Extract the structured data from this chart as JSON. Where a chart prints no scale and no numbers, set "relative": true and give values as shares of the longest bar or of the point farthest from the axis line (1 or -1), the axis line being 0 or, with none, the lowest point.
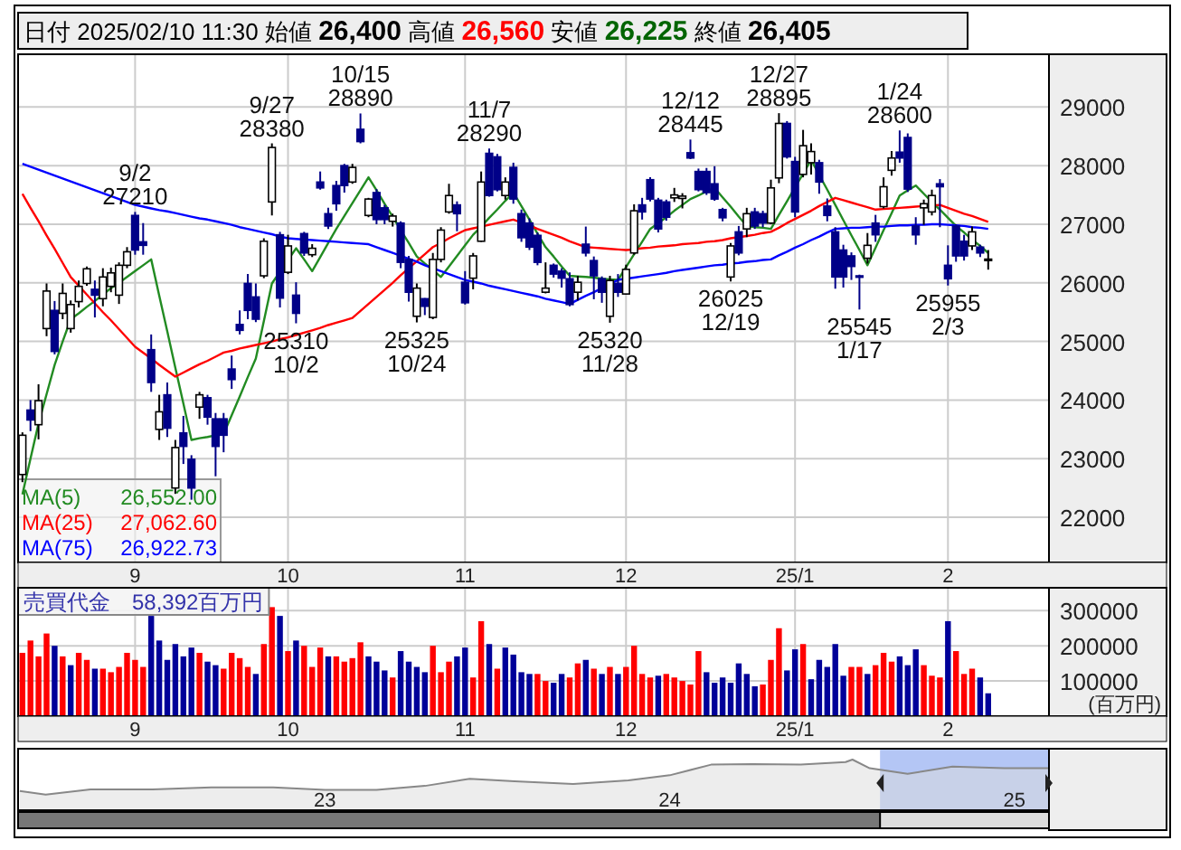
{
  "chart_data": [
    {
      "type": "candlestick",
      "title": "日付 2025/02/10 11:30 始値 26,400 高値 26,560 安値 26,225 終値 26,405",
      "grid": true,
      "legend": "bottom left",
      "categories": [
        null,
        null,
        null,
        null,
        null,
        null,
        null,
        null,
        null,
        null,
        null,
        null,
        null,
        null,
        "9",
        null,
        null,
        null,
        null,
        null,
        null,
        null,
        null,
        null,
        null,
        null,
        null,
        null,
        null,
        null,
        null,
        null,
        null,
        "10",
        null,
        null,
        null,
        null,
        null,
        null,
        null,
        null,
        null,
        null,
        null,
        null,
        null,
        null,
        null,
        null,
        null,
        null,
        null,
        null,
        null,
        "11",
        null,
        null,
        null,
        null,
        null,
        null,
        null,
        null,
        null,
        null,
        null,
        null,
        null,
        null,
        null,
        null,
        null,
        null,
        null,
        "12",
        null,
        null,
        null,
        null,
        null,
        null,
        null,
        null,
        null,
        null,
        null,
        null,
        null,
        null,
        null,
        null,
        null,
        null,
        null,
        null,
        "25/1",
        null,
        null,
        null,
        null,
        null,
        null,
        null,
        null,
        null,
        null,
        null,
        null,
        null,
        null,
        null,
        null,
        null,
        null,
        "2",
        null,
        null,
        null,
        null,
        null
      ],
      "ylim": [
        21230,
        29900
      ],
      "yticks": [
        22000,
        23000,
        24000,
        25000,
        26000,
        27000,
        28000,
        29000
      ],
      "ohlc": [
        [
          22730,
          23450,
          22600,
          23400
        ],
        [
          23830,
          24000,
          23470,
          23660
        ],
        [
          23580,
          24270,
          23330,
          23990
        ],
        [
          25220,
          25990,
          25090,
          25860
        ],
        [
          25530,
          25690,
          24780,
          24830
        ],
        [
          25480,
          25990,
          25380,
          25820
        ],
        [
          25220,
          25700,
          25150,
          25630
        ],
        [
          25680,
          26040,
          25580,
          25940
        ],
        [
          25990,
          26280,
          25950,
          26240
        ],
        [
          25890,
          26040,
          25410,
          25790
        ],
        [
          25730,
          26250,
          25600,
          26100
        ],
        [
          25940,
          26260,
          25840,
          26170
        ],
        [
          25790,
          26350,
          25640,
          26300
        ],
        [
          26300,
          26610,
          26250,
          26530
        ],
        [
          27150,
          27210,
          26480,
          26560
        ],
        [
          26700,
          27020,
          26480,
          26640
        ],
        [
          24860,
          25120,
          24140,
          24300
        ],
        [
          23500,
          24090,
          23320,
          23800
        ],
        [
          24090,
          24300,
          23370,
          23520
        ],
        [
          22500,
          23320,
          22400,
          23190
        ],
        [
          23440,
          23730,
          22910,
          23210
        ],
        [
          22990,
          23060,
          22300,
          22500
        ],
        [
          23880,
          24140,
          23680,
          24090
        ],
        [
          24040,
          24090,
          23580,
          23710
        ],
        [
          23680,
          23780,
          22700,
          23210
        ],
        [
          23680,
          23780,
          23110,
          23400
        ],
        [
          24530,
          24760,
          24190,
          24350
        ],
        [
          25290,
          25530,
          25120,
          25190
        ],
        [
          25990,
          26150,
          25380,
          25530
        ],
        [
          25760,
          25990,
          25330,
          25380
        ],
        [
          26120,
          26760,
          26080,
          26710
        ],
        [
          27380,
          28380,
          27150,
          28310
        ],
        [
          26820,
          26870,
          25580,
          25740
        ],
        [
          26180,
          26820,
          26150,
          26630
        ],
        [
          25790,
          26010,
          25310,
          25480
        ],
        [
          26840,
          26870,
          26460,
          26510
        ],
        [
          26480,
          26660,
          26440,
          26590
        ],
        [
          27720,
          27900,
          27590,
          27620
        ],
        [
          27180,
          27280,
          26920,
          26970
        ],
        [
          27660,
          27740,
          27230,
          27350
        ],
        [
          28000,
          28030,
          27540,
          27660
        ],
        [
          27720,
          28030,
          27690,
          27970
        ],
        [
          28620,
          28890,
          28380,
          28410
        ],
        [
          27150,
          27450,
          27120,
          27430
        ],
        [
          27540,
          27600,
          27000,
          27080
        ],
        [
          27280,
          27330,
          27000,
          27080
        ],
        [
          27050,
          27180,
          26960,
          27140
        ],
        [
          27020,
          27050,
          26250,
          26350
        ],
        [
          26400,
          26460,
          25680,
          25840
        ],
        [
          25430,
          25990,
          25325,
          25910
        ],
        [
          25730,
          25740,
          25450,
          25600
        ],
        [
          25410,
          26510,
          25380,
          26400
        ],
        [
          26400,
          26950,
          26350,
          26900
        ],
        [
          27210,
          27690,
          27180,
          27490
        ],
        [
          27330,
          27390,
          26880,
          27180
        ],
        [
          26010,
          26200,
          25630,
          25660
        ],
        [
          26080,
          26510,
          25890,
          26460
        ],
        [
          26710,
          27900,
          26700,
          27720
        ],
        [
          28210,
          28290,
          27470,
          27490
        ],
        [
          28150,
          28200,
          27560,
          27590
        ],
        [
          27490,
          27800,
          27420,
          27720
        ],
        [
          27970,
          28050,
          27350,
          27430
        ],
        [
          27180,
          27250,
          26700,
          26770
        ],
        [
          27020,
          27100,
          26560,
          26610
        ],
        [
          26810,
          26860,
          26300,
          26350
        ],
        [
          25840,
          26350,
          25820,
          25910
        ],
        [
          26300,
          26330,
          26090,
          26150
        ],
        [
          26200,
          26250,
          25920,
          26080
        ],
        [
          26070,
          26180,
          25600,
          25630
        ],
        [
          25840,
          26120,
          25700,
          26010
        ],
        [
          26660,
          26960,
          26450,
          26510
        ],
        [
          26380,
          26450,
          25720,
          26120
        ],
        [
          26070,
          26110,
          25660,
          25840
        ],
        [
          25430,
          26120,
          25320,
          26040
        ],
        [
          25990,
          26150,
          25760,
          25840
        ],
        [
          25810,
          26310,
          25800,
          26230
        ],
        [
          26510,
          27340,
          26480,
          27230
        ],
        [
          27330,
          27450,
          27080,
          27210
        ],
        [
          27760,
          27800,
          27390,
          27430
        ],
        [
          27410,
          27450,
          26860,
          26920
        ],
        [
          27380,
          27420,
          27060,
          27120
        ],
        [
          27450,
          27620,
          27380,
          27500
        ],
        [
          27440,
          27530,
          27270,
          27480
        ],
        [
          28220,
          28445,
          28110,
          28130
        ],
        [
          27900,
          27950,
          27560,
          27590
        ],
        [
          27900,
          27960,
          27500,
          27540
        ],
        [
          27690,
          27990,
          27400,
          27430
        ],
        [
          27250,
          27280,
          27050,
          27110
        ],
        [
          26100,
          26680,
          26025,
          26630
        ],
        [
          26870,
          26970,
          26470,
          26510
        ],
        [
          26920,
          27280,
          26780,
          27180
        ],
        [
          27210,
          27280,
          26920,
          26970
        ],
        [
          27180,
          27230,
          26950,
          27020
        ],
        [
          27020,
          27760,
          27000,
          27620
        ],
        [
          27790,
          28895,
          27700,
          28720
        ],
        [
          28720,
          28760,
          28120,
          28150
        ],
        [
          28070,
          28150,
          27120,
          27210
        ],
        [
          27850,
          28610,
          27800,
          28340
        ],
        [
          28050,
          28380,
          27850,
          28240
        ],
        [
          28050,
          28100,
          27520,
          27720
        ],
        [
          27310,
          27440,
          27050,
          27150
        ],
        [
          26870,
          26950,
          25900,
          26100
        ],
        [
          26560,
          26650,
          25920,
          26100
        ],
        [
          26460,
          26520,
          26050,
          26280
        ],
        [
          26120,
          26140,
          25545,
          26100
        ],
        [
          26420,
          26850,
          26330,
          26640
        ],
        [
          27020,
          27160,
          26700,
          26820
        ],
        [
          27300,
          27800,
          27270,
          27640
        ],
        [
          27920,
          28250,
          27830,
          28130
        ],
        [
          28230,
          28600,
          28050,
          28130
        ],
        [
          28480,
          28550,
          27550,
          27600
        ],
        [
          26970,
          27120,
          26650,
          26820
        ],
        [
          27280,
          27420,
          26990,
          27350
        ],
        [
          27210,
          27590,
          27150,
          27490
        ],
        [
          27690,
          27770,
          26950,
          27640
        ],
        [
          26300,
          26640,
          25955,
          26070
        ],
        [
          26970,
          27000,
          26360,
          26460
        ],
        [
          26710,
          26820,
          26380,
          26460
        ],
        [
          26630,
          26960,
          26560,
          26870
        ],
        [
          26610,
          26650,
          26440,
          26510
        ],
        [
          26400,
          26560,
          26225,
          26405
        ]
      ],
      "series": [
        {
          "name": "MA(5)",
          "type": "line",
          "color": "#228b22",
          "values": [
            22390,
            23000,
            23600,
            24100,
            24600,
            25000,
            25380,
            25480,
            25590,
            25690,
            25800,
            25910,
            26000,
            26100,
            26200,
            26300,
            26400,
            25780,
            25170,
            24550,
            23940,
            23320,
            23350,
            23370,
            23400,
            23420,
            23740,
            24060,
            24390,
            24710,
            25350,
            25990,
            26190,
            26390,
            26590,
            26400,
            26200,
            26440,
            26680,
            26920,
            27140,
            27360,
            27580,
            27800,
            27580,
            27350,
            27130,
            26900,
            26680,
            26450,
            26330,
            26220,
            26100,
            26280,
            26460,
            26640,
            26820,
            26960,
            27110,
            27250,
            27400,
            27540,
            27310,
            27080,
            26840,
            26610,
            26450,
            26280,
            26120,
            26110,
            26100,
            26090,
            26070,
            26060,
            26050,
            26270,
            26490,
            26700,
            26920,
            27020,
            27120,
            27230,
            27330,
            27430,
            27490,
            27560,
            27620,
            27460,
            27300,
            27130,
            26970,
            26950,
            26940,
            26920,
            27160,
            27390,
            27630,
            27860,
            28100,
            27840,
            27590,
            27330,
            27070,
            26810,
            26560,
            26300,
            26600,
            26900,
            27190,
            27490,
            27580,
            27660,
            27520,
            27380,
            27250,
            27110,
            26970,
            26860,
            26740,
            26630,
            26510
          ]
        },
        {
          "name": "MA(25)",
          "type": "line",
          "color": "#ff0000",
          "values": [
            27520,
            27280,
            27050,
            26810,
            26580,
            26340,
            26100,
            25950,
            25800,
            25650,
            25500,
            25360,
            25210,
            25060,
            24910,
            24810,
            24710,
            24600,
            24500,
            24400,
            24470,
            24540,
            24610,
            24670,
            24740,
            24810,
            24840,
            24880,
            24910,
            24940,
            24970,
            25000,
            25040,
            25070,
            25110,
            25150,
            25190,
            25230,
            25280,
            25320,
            25360,
            25400,
            25520,
            25640,
            25760,
            25880,
            26000,
            26130,
            26250,
            26370,
            26490,
            26610,
            26680,
            26760,
            26830,
            26900,
            26930,
            26960,
            26990,
            27020,
            27050,
            27080,
            27030,
            26980,
            26920,
            26870,
            26820,
            26770,
            26710,
            26660,
            26610,
            26600,
            26590,
            26580,
            26570,
            26560,
            26570,
            26590,
            26600,
            26620,
            26630,
            26640,
            26660,
            26670,
            26680,
            26700,
            26710,
            26730,
            26760,
            26780,
            26800,
            26820,
            26850,
            26870,
            26940,
            27020,
            27090,
            27160,
            27230,
            27310,
            27380,
            27450,
            27410,
            27370,
            27330,
            27290,
            27250,
            27260,
            27270,
            27280,
            27290,
            27300,
            27310,
            27320,
            27330,
            27280,
            27230,
            27180,
            27140,
            27090,
            27040
          ]
        },
        {
          "name": "MA(75)",
          "type": "line",
          "color": "#0000ff",
          "values": [
            28030,
            27980,
            27930,
            27880,
            27830,
            27780,
            27730,
            27680,
            27630,
            27580,
            27530,
            27480,
            27430,
            27380,
            27330,
            27300,
            27270,
            27240,
            27220,
            27190,
            27160,
            27130,
            27100,
            27080,
            27050,
            27020,
            26990,
            26950,
            26920,
            26890,
            26860,
            26830,
            26790,
            26760,
            26750,
            26740,
            26730,
            26720,
            26710,
            26700,
            26690,
            26680,
            26670,
            26660,
            26610,
            26560,
            26510,
            26460,
            26410,
            26360,
            26300,
            26250,
            26200,
            26150,
            26100,
            26050,
            26020,
            25990,
            25950,
            25920,
            25890,
            25860,
            25830,
            25800,
            25770,
            25730,
            25700,
            25670,
            25640,
            25710,
            25780,
            25840,
            25910,
            25980,
            26050,
            26070,
            26090,
            26110,
            26130,
            26150,
            26170,
            26200,
            26220,
            26240,
            26260,
            26280,
            26300,
            26310,
            26330,
            26340,
            26360,
            26370,
            26390,
            26400,
            26470,
            26530,
            26600,
            26660,
            26730,
            26790,
            26860,
            26920,
            26930,
            26940,
            26940,
            26950,
            26960,
            26960,
            26970,
            26980,
            26980,
            26990,
            26990,
            27000,
            27000,
            26990,
            26980,
            26970,
            26950,
            26940,
            26920
          ]
        }
      ],
      "annotations": [
        "26,552.00",
        "27,062.60",
        "26,922.73",
        {
          "text": "9/2\n27210",
          "y": 27210
        },
        {
          "text": "9/27\n28380",
          "y": 28380
        },
        {
          "text": "25310\n10/2",
          "y": 25310
        },
        {
          "text": "10/15\n28890",
          "y": 28890
        },
        {
          "text": "25325\n10/24",
          "y": 25325
        },
        {
          "text": "11/7\n28290",
          "y": 28290
        },
        {
          "text": "25320\n11/28",
          "y": 25320
        },
        {
          "text": "12/12\n28445",
          "y": 28445
        },
        {
          "text": "26025\n12/19",
          "y": 26025
        },
        {
          "text": "12/27\n28895",
          "y": 28895
        },
        {
          "text": "25545\n1/17",
          "y": 25545
        },
        {
          "text": "1/24\n28600",
          "y": 28600
        },
        {
          "text": "25955\n2/3",
          "y": 25955
        }
      ]
    },
    {
      "type": "bar",
      "title": "売買代金　58,392百万円",
      "ylabel": "(百万円)",
      "grid": true,
      "categories": [
        null,
        null,
        null,
        null,
        null,
        null,
        null,
        null,
        null,
        null,
        null,
        null,
        null,
        null,
        "9",
        null,
        null,
        null,
        null,
        null,
        null,
        null,
        null,
        null,
        null,
        null,
        null,
        null,
        null,
        null,
        null,
        null,
        null,
        "10",
        null,
        null,
        null,
        null,
        null,
        null,
        null,
        null,
        null,
        null,
        null,
        null,
        null,
        null,
        null,
        null,
        null,
        null,
        null,
        null,
        null,
        "11",
        null,
        null,
        null,
        null,
        null,
        null,
        null,
        null,
        null,
        null,
        null,
        null,
        null,
        null,
        null,
        null,
        null,
        null,
        null,
        "12",
        null,
        null,
        null,
        null,
        null,
        null,
        null,
        null,
        null,
        null,
        null,
        null,
        null,
        null,
        null,
        null,
        null,
        null,
        null,
        null,
        "25/1",
        null,
        null,
        null,
        null,
        null,
        null,
        null,
        null,
        null,
        null,
        null,
        null,
        null,
        null,
        null,
        null,
        null,
        null,
        "2",
        null,
        null,
        null,
        null,
        null
      ],
      "ylim": [
        0,
        365000
      ],
      "yticks": [
        100000,
        200000,
        300000
      ],
      "values": [
        180000,
        215000,
        170000,
        235000,
        200000,
        170000,
        145000,
        180000,
        160000,
        135000,
        135000,
        125000,
        140000,
        180000,
        160000,
        140000,
        285000,
        215000,
        160000,
        205000,
        170000,
        195000,
        180000,
        155000,
        145000,
        135000,
        180000,
        165000,
        140000,
        120000,
        205000,
        310000,
        285000,
        185000,
        215000,
        200000,
        140000,
        195000,
        170000,
        170000,
        155000,
        165000,
        210000,
        170000,
        155000,
        130000,
        110000,
        185000,
        155000,
        140000,
        125000,
        200000,
        125000,
        155000,
        170000,
        195000,
        110000,
        270000,
        205000,
        135000,
        195000,
        175000,
        125000,
        120000,
        120000,
        100000,
        95000,
        120000,
        110000,
        150000,
        160000,
        135000,
        120000,
        140000,
        120000,
        140000,
        200000,
        120000,
        110000,
        115000,
        120000,
        110000,
        100000,
        90000,
        185000,
        125000,
        95000,
        110000,
        95000,
        150000,
        120000,
        85000,
        90000,
        160000,
        250000,
        130000,
        190000,
        205000,
        105000,
        160000,
        140000,
        205000,
        115000,
        140000,
        140000,
        120000,
        145000,
        180000,
        155000,
        170000,
        145000,
        190000,
        145000,
        115000,
        110000,
        270000,
        185000,
        120000,
        135000,
        110000,
        65000
      ],
      "colors": [
        "#ff0000",
        "#ff0000",
        "#ff0000",
        "#ff0000",
        "#000099",
        "#ff0000",
        "#000099",
        "#ff0000",
        "#ff0000",
        "#000099",
        "#ff0000",
        "#ff0000",
        "#ff0000",
        "#ff0000",
        "#ff0000",
        "#ff0000",
        "#000099",
        "#000099",
        "#000099",
        "#000099",
        "#000099",
        "#000099",
        "#ff0000",
        "#000099",
        "#000099",
        "#ff0000",
        "#ff0000",
        "#ff0000",
        "#ff0000",
        "#000099",
        "#ff0000",
        "#ff0000",
        "#000099",
        "#ff0000",
        "#000099",
        "#ff0000",
        "#ff0000",
        "#ff0000",
        "#000099",
        "#ff0000",
        "#ff0000",
        "#ff0000",
        "#ff0000",
        "#000099",
        "#000099",
        "#000099",
        "#ff0000",
        "#000099",
        "#000099",
        "#000099",
        "#000099",
        "#ff0000",
        "#ff0000",
        "#ff0000",
        "#000099",
        "#000099",
        "#ff0000",
        "#ff0000",
        "#000099",
        "#ff0000",
        "#000099",
        "#000099",
        "#000099",
        "#000099",
        "#ff0000",
        "#ff0000",
        "#000099",
        "#000099",
        "#ff0000",
        "#ff0000",
        "#000099",
        "#ff0000",
        "#000099",
        "#ff0000",
        "#000099",
        "#ff0000",
        "#ff0000",
        "#ff0000",
        "#ff0000",
        "#000099",
        "#ff0000",
        "#ff0000",
        "#ff0000",
        "#ff0000",
        "#ff0000",
        "#000099",
        "#000099",
        "#000099",
        "#000099",
        "#000099",
        "#000099",
        "#000099",
        "#ff0000",
        "#ff0000",
        "#ff0000",
        "#000099",
        "#000099",
        "#ff0000",
        "#000099",
        "#000099",
        "#000099",
        "#000099",
        "#000099",
        "#ff0000",
        "#ff0000",
        "#000099",
        "#ff0000",
        "#ff0000",
        "#ff0000",
        "#000099",
        "#000099",
        "#000099",
        "#ff0000",
        "#ff0000",
        "#ff0000",
        "#000099",
        "#ff0000",
        "#ff0000",
        "#ff0000",
        "#000099",
        "#000099"
      ]
    },
    {
      "type": "area",
      "relative": true,
      "xlim": [
        2022.11,
        2025.1
      ],
      "xticks": [
        {
          "value": 2023,
          "label": "23"
        },
        {
          "value": 2024,
          "label": "24"
        },
        {
          "value": 2025,
          "label": "25"
        }
      ],
      "x": [
        2022.115,
        2022.19,
        2022.32,
        2022.5,
        2022.67,
        2022.85,
        2023.0,
        2023.15,
        2023.29,
        2023.42,
        2023.55,
        2023.72,
        2023.88,
        2024.0,
        2024.12,
        2024.24,
        2024.38,
        2024.51,
        2024.53,
        2024.58,
        2024.69,
        2024.82,
        2024.97,
        2025.1
      ],
      "series": [
        {
          "color": "#888888",
          "values": [
            0.38,
            0.31,
            0.41,
            0.41,
            0.45,
            0.45,
            0.4,
            0.4,
            0.48,
            0.62,
            0.57,
            0.52,
            0.59,
            0.69,
            0.9,
            0.91,
            0.9,
            0.95,
            1,
            0.83,
            0.72,
            0.86,
            0.83,
            0.83
          ]
        }
      ],
      "bands": [
        {
          "axis": "x",
          "from": 2024.61,
          "to": 2025.1,
          "color": "#b4c6f5"
        }
      ]
    }
  ]
}
